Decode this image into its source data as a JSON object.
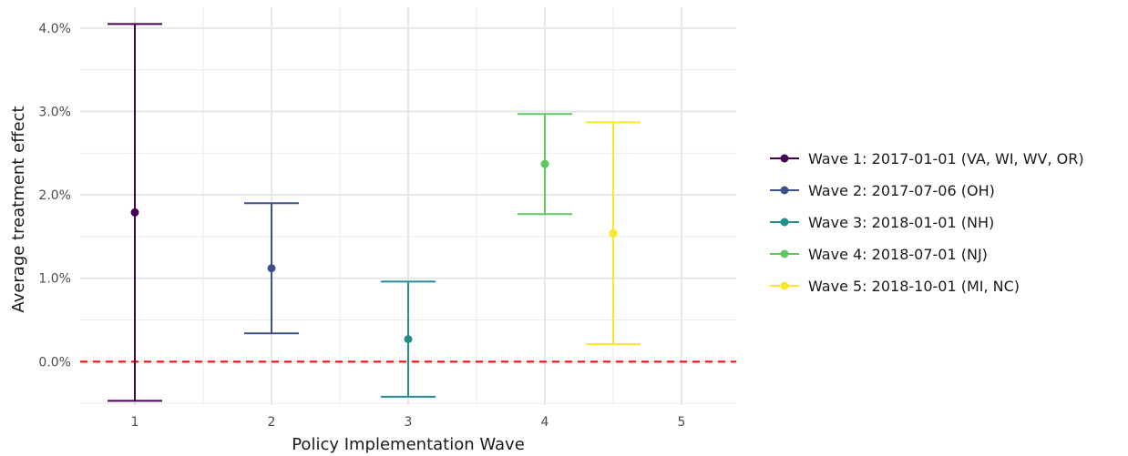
{
  "chart_data": {
    "type": "errorbar",
    "title": "",
    "xlabel": "Policy Implementation Wave",
    "ylabel": "Average treatment effect",
    "xlim": [
      0.6,
      5.4
    ],
    "ylim": [
      -0.52,
      4.25
    ],
    "y_ticks": [
      0.0,
      1.0,
      2.0,
      3.0,
      4.0
    ],
    "y_tick_labels": [
      "0.0%",
      "1.0%",
      "2.0%",
      "3.0%",
      "4.0%"
    ],
    "x_ticks": [
      1,
      2,
      3,
      4,
      5
    ],
    "x_tick_labels": [
      "1",
      "2",
      "3",
      "4",
      "5"
    ],
    "y_minor_ticks": [
      -0.5,
      0.5,
      1.5,
      2.5,
      3.5
    ],
    "x_minor_ticks": [
      1.5,
      2.5,
      3.5,
      4.5
    ],
    "grid": true,
    "reference_line": {
      "y": 0.0,
      "color": "#ff0000",
      "style": "dashed"
    },
    "legend_position": "right",
    "series": [
      {
        "name": "Wave 1: 2017-01-01 (VA, WI, WV, OR)",
        "x": 1,
        "estimate": 1.79,
        "lower": -0.47,
        "upper": 4.05,
        "color": "#440154"
      },
      {
        "name": "Wave 2: 2017-07-06 (OH)",
        "x": 2,
        "estimate": 1.12,
        "lower": 0.34,
        "upper": 1.9,
        "color": "#3b528b"
      },
      {
        "name": "Wave 3: 2018-01-01 (NH)",
        "x": 3,
        "estimate": 0.27,
        "lower": -0.42,
        "upper": 0.96,
        "color": "#21908c"
      },
      {
        "name": "Wave 4: 2018-07-01 (NJ)",
        "x": 4,
        "estimate": 2.37,
        "lower": 1.77,
        "upper": 2.97,
        "color": "#5ec962"
      },
      {
        "name": "Wave 5: 2018-10-01 (MI, NC)",
        "x": 4.5,
        "estimate": 1.54,
        "lower": 0.21,
        "upper": 2.87,
        "color": "#fde725"
      }
    ]
  }
}
